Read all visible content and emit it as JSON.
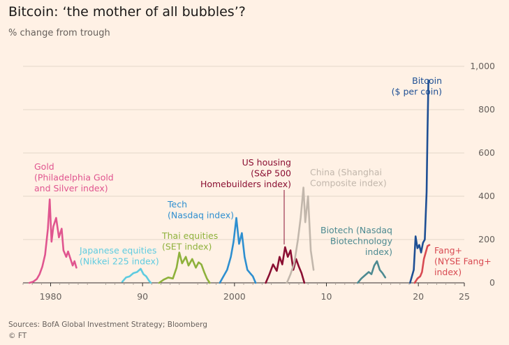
{
  "title": "Bitcoin: ‘the mother of all bubbles’?",
  "subtitle": "% change from trough",
  "sources": "Sources: BofA Global Investment Strategy; Bloomberg",
  "credit": "© FT",
  "chart_data": {
    "type": "line",
    "ylim": [
      0,
      1000
    ],
    "xlim": [
      1977,
      2025
    ],
    "y_ticks": [
      0,
      200,
      400,
      600,
      800,
      1000
    ],
    "y_tick_labels": [
      "0",
      "200",
      "400",
      "600",
      "800",
      "1,000"
    ],
    "x_ticks": [
      1980,
      1990,
      2000,
      2010,
      2020,
      2025
    ],
    "x_tick_labels": [
      "1980",
      "90",
      "2000",
      "10",
      "20",
      "25"
    ],
    "grid": true,
    "series": [
      {
        "name": "Gold (Philadelphia Gold and Silver index)",
        "label_lines": [
          "Gold",
          "(Philadelphia Gold",
          "and Silver index)"
        ],
        "color": "#e0558f",
        "x": [
          1977.7,
          1978.1,
          1978.5,
          1978.8,
          1979.1,
          1979.4,
          1979.7,
          1979.9,
          1980.1,
          1980.3,
          1980.6,
          1980.9,
          1981.2,
          1981.4,
          1981.7,
          1981.9,
          1982.2,
          1982.4,
          1982.6,
          1982.8
        ],
        "y": [
          0,
          5,
          18,
          40,
          75,
          130,
          250,
          385,
          190,
          260,
          300,
          210,
          250,
          150,
          120,
          145,
          105,
          80,
          100,
          70
        ]
      },
      {
        "name": "Japanese equities (Nikkei 225 index)",
        "label_lines": [
          "Japanese equities",
          "(Nikkei 225 index)"
        ],
        "color": "#5ecbe0",
        "x": [
          1987.8,
          1988.2,
          1988.6,
          1989.0,
          1989.4,
          1989.8,
          1990.1,
          1990.4,
          1990.7,
          1990.9
        ],
        "y": [
          5,
          25,
          30,
          45,
          50,
          65,
          40,
          30,
          10,
          0
        ]
      },
      {
        "name": "Thai equities (SET index)",
        "label_lines": [
          "Thai equities",
          "(SET index)"
        ],
        "color": "#8eb13b",
        "x": [
          1991.8,
          1992.3,
          1992.8,
          1993.3,
          1993.7,
          1994.0,
          1994.3,
          1994.7,
          1995.0,
          1995.4,
          1995.8,
          1996.1,
          1996.4,
          1996.7,
          1997.0,
          1997.3
        ],
        "y": [
          0,
          15,
          25,
          20,
          70,
          140,
          90,
          120,
          80,
          110,
          70,
          95,
          85,
          50,
          20,
          0
        ]
      },
      {
        "name": "Tech (Nasdaq index)",
        "label_lines": [
          "Tech",
          "(Nasdaq index)"
        ],
        "color": "#2e8fd0",
        "x": [
          1998.4,
          1998.8,
          1999.2,
          1999.6,
          1999.9,
          2000.2,
          2000.5,
          2000.8,
          2001.1,
          2001.4,
          2001.7,
          2002.0,
          2002.3
        ],
        "y": [
          0,
          30,
          60,
          120,
          190,
          300,
          180,
          230,
          120,
          60,
          45,
          30,
          0
        ]
      },
      {
        "name": "US housing (S&P 500 Homebuilders index)",
        "label_lines": [
          "US housing",
          "(S&P 500",
          "Homebuilders index)"
        ],
        "color": "#8a0f32",
        "x": [
          2003.4,
          2003.8,
          2004.2,
          2004.6,
          2004.9,
          2005.2,
          2005.5,
          2005.8,
          2006.1,
          2006.4,
          2006.7,
          2007.0,
          2007.3,
          2007.6
        ],
        "y": [
          0,
          40,
          85,
          55,
          120,
          85,
          165,
          120,
          150,
          60,
          110,
          75,
          45,
          0
        ]
      },
      {
        "name": "China (Shanghai Composite index)",
        "label_lines": [
          "China (Shanghai",
          "Composite index)"
        ],
        "color": "#c2b7ac",
        "x": [
          2005.7,
          2006.1,
          2006.5,
          2006.9,
          2007.2,
          2007.5,
          2007.7,
          2008.0,
          2008.3,
          2008.6
        ],
        "y": [
          0,
          40,
          90,
          200,
          300,
          440,
          280,
          400,
          150,
          60
        ]
      },
      {
        "name": "Biotech (Nasdaq Biotechnology index)",
        "label_lines": [
          "Biotech (Nasdaq",
          "Biotechnology",
          "index)"
        ],
        "color": "#4d8a91",
        "x": [
          2013.4,
          2013.8,
          2014.2,
          2014.6,
          2014.9,
          2015.2,
          2015.5,
          2015.8,
          2016.1,
          2016.4
        ],
        "y": [
          0,
          20,
          35,
          50,
          40,
          80,
          100,
          60,
          45,
          25
        ]
      },
      {
        "name": "Bitcoin ($ per coin)",
        "label_lines": [
          "Bitcoin",
          "($ per coin)"
        ],
        "color": "#1e4f94",
        "x": [
          2019.1,
          2019.5,
          2019.7,
          2019.9,
          2020.1,
          2020.3,
          2020.5,
          2020.7,
          2020.9,
          2021.0,
          2021.1
        ],
        "y": [
          0,
          60,
          215,
          160,
          175,
          140,
          185,
          200,
          420,
          700,
          935
        ]
      },
      {
        "name": "Fang+ (NYSE Fang+ index)",
        "label_lines": [
          "Fang+",
          "(NYSE Fang+",
          "index)"
        ],
        "color": "#d84a52",
        "x": [
          2019.6,
          2019.9,
          2020.2,
          2020.4,
          2020.6,
          2020.8,
          2021.0,
          2021.2
        ],
        "y": [
          0,
          20,
          30,
          50,
          110,
          140,
          170,
          175
        ]
      }
    ]
  }
}
